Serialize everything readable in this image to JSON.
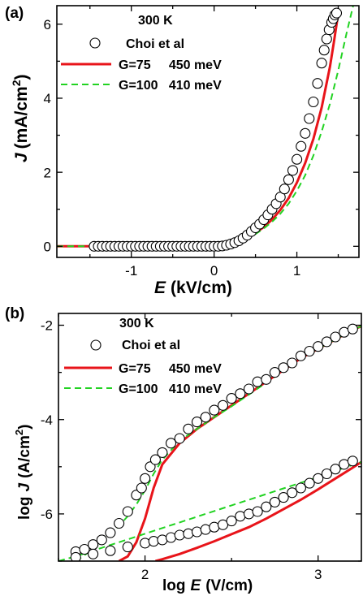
{
  "chart_data": [
    {
      "panel": "(a)",
      "type": "scatter",
      "xlabel_var": "E",
      "xlabel_unit": "(kV/cm)",
      "ylabel_var": "J",
      "ylabel_unit": "(mA/cm",
      "ylabel_sup": "2",
      "ylabel_close": ")",
      "xlim": [
        -1.9,
        1.75
      ],
      "ylim": [
        -0.3,
        6.5
      ],
      "xticks": [
        -1,
        0,
        1
      ],
      "xtick_labels": [
        "-1",
        "0",
        "1"
      ],
      "yticks": [
        0,
        2,
        4,
        6
      ],
      "ytick_labels": [
        "0",
        "2",
        "4",
        "6"
      ],
      "legend": {
        "header": "300 K",
        "items": [
          {
            "text": "Choi et al",
            "style": "open-circle",
            "color": "#000000"
          },
          {
            "text": "G=75     450 meV",
            "style": "solid",
            "color": "#e8141a"
          },
          {
            "text": "G=100   410 meV",
            "style": "dashed",
            "color": "#22d322"
          }
        ]
      },
      "series": [
        {
          "name": "Choi et al",
          "style": "open-circle",
          "x": [
            -1.45,
            -1.4,
            -1.35,
            -1.3,
            -1.25,
            -1.2,
            -1.15,
            -1.1,
            -1.05,
            -1.0,
            -0.95,
            -0.9,
            -0.85,
            -0.8,
            -0.75,
            -0.7,
            -0.65,
            -0.6,
            -0.55,
            -0.5,
            -0.45,
            -0.4,
            -0.35,
            -0.3,
            -0.25,
            -0.2,
            -0.15,
            -0.1,
            -0.05,
            0.0,
            0.05,
            0.1,
            0.15,
            0.2,
            0.25,
            0.3,
            0.35,
            0.4,
            0.45,
            0.5,
            0.55,
            0.6,
            0.65,
            0.7,
            0.75,
            0.8,
            0.85,
            0.9,
            0.95,
            1.0,
            1.05,
            1.1,
            1.15,
            1.2,
            1.25,
            1.3,
            1.33,
            1.36,
            1.39,
            1.42,
            1.44,
            1.46,
            1.48
          ],
          "y": [
            0,
            0,
            0,
            0,
            0,
            0,
            0,
            0,
            0,
            0,
            0,
            0,
            0,
            0,
            0,
            0,
            0,
            0,
            0,
            0,
            0,
            0,
            0,
            0,
            0,
            0,
            0,
            0,
            0,
            0,
            0,
            0.01,
            0.03,
            0.06,
            0.1,
            0.15,
            0.22,
            0.3,
            0.4,
            0.5,
            0.6,
            0.72,
            0.85,
            1.0,
            1.15,
            1.33,
            1.55,
            1.8,
            2.05,
            2.35,
            2.7,
            3.05,
            3.45,
            3.9,
            4.4,
            4.95,
            5.3,
            5.6,
            5.85,
            6.05,
            6.15,
            6.25,
            6.3
          ]
        },
        {
          "name": "G=75     450 meV",
          "style": "solid",
          "x": [
            -1.9,
            -1.0,
            0.0,
            0.1,
            0.2,
            0.3,
            0.4,
            0.5,
            0.6,
            0.7,
            0.8,
            0.9,
            1.0,
            1.1,
            1.2,
            1.3,
            1.4,
            1.45,
            1.5
          ],
          "y": [
            0,
            0,
            0,
            0.01,
            0.05,
            0.12,
            0.22,
            0.36,
            0.52,
            0.72,
            0.98,
            1.3,
            1.72,
            2.25,
            2.9,
            3.75,
            4.85,
            5.55,
            6.3
          ]
        },
        {
          "name": "G=100   410 meV",
          "style": "dashed",
          "x": [
            -1.9,
            -1.0,
            0.0,
            0.1,
            0.2,
            0.3,
            0.4,
            0.5,
            0.6,
            0.7,
            0.8,
            0.9,
            1.0,
            1.1,
            1.2,
            1.3,
            1.4,
            1.5,
            1.6,
            1.68
          ],
          "y": [
            0,
            0,
            0,
            0.01,
            0.05,
            0.12,
            0.21,
            0.33,
            0.48,
            0.66,
            0.88,
            1.15,
            1.5,
            1.92,
            2.45,
            3.1,
            3.85,
            4.75,
            5.75,
            6.5
          ]
        }
      ]
    },
    {
      "panel": "(b)",
      "type": "scatter",
      "xlabel_var": "E",
      "xlabel_pre": "log",
      "xlabel_unit": "(V/cm)",
      "ylabel_pre": "log",
      "ylabel_var": "J",
      "ylabel_unit": "(A/cm",
      "ylabel_sup": "2",
      "ylabel_close": ")",
      "xlim": [
        1.5,
        3.25
      ],
      "ylim": [
        -7.0,
        -1.75
      ],
      "xticks": [
        2,
        3
      ],
      "xtick_labels": [
        "2",
        "3"
      ],
      "yticks": [
        -6,
        -4,
        -2
      ],
      "ytick_labels": [
        "-6",
        "-4",
        "-2"
      ],
      "legend": {
        "header": "300 K",
        "items": [
          {
            "text": "Choi et al",
            "style": "open-circle",
            "color": "#000000"
          },
          {
            "text": "G=75     450 meV",
            "style": "solid",
            "color": "#e8141a"
          },
          {
            "text": "G=100   410 meV",
            "style": "dashed",
            "color": "#22d322"
          }
        ]
      },
      "series": [
        {
          "name": "Choi et al (upper)",
          "style": "open-circle",
          "x": [
            1.6,
            1.65,
            1.7,
            1.75,
            1.8,
            1.85,
            1.9,
            1.95,
            1.98,
            2.0,
            2.03,
            2.06,
            2.1,
            2.15,
            2.2,
            2.25,
            2.3,
            2.35,
            2.4,
            2.45,
            2.5,
            2.55,
            2.6,
            2.65,
            2.7,
            2.75,
            2.8,
            2.85,
            2.9,
            2.95,
            3.0,
            3.05,
            3.1,
            3.15,
            3.2
          ],
          "y": [
            -6.8,
            -6.75,
            -6.65,
            -6.55,
            -6.4,
            -6.2,
            -5.95,
            -5.6,
            -5.45,
            -5.25,
            -5.0,
            -4.85,
            -4.7,
            -4.5,
            -4.4,
            -4.2,
            -4.05,
            -3.95,
            -3.8,
            -3.7,
            -3.55,
            -3.45,
            -3.35,
            -3.2,
            -3.15,
            -3.0,
            -2.9,
            -2.8,
            -2.65,
            -2.55,
            -2.45,
            -2.35,
            -2.25,
            -2.15,
            -2.08
          ]
        },
        {
          "name": "Choi et al (lower)",
          "style": "open-circle",
          "x": [
            1.6,
            1.7,
            1.8,
            1.9,
            2.0,
            2.05,
            2.1,
            2.15,
            2.2,
            2.25,
            2.3,
            2.35,
            2.4,
            2.45,
            2.5,
            2.55,
            2.6,
            2.65,
            2.7,
            2.75,
            2.8,
            2.85,
            2.9,
            2.95,
            3.0,
            3.05,
            3.1,
            3.15,
            3.2
          ],
          "y": [
            -6.92,
            -6.85,
            -6.78,
            -6.7,
            -6.62,
            -6.58,
            -6.55,
            -6.5,
            -6.45,
            -6.42,
            -6.38,
            -6.33,
            -6.28,
            -6.23,
            -6.15,
            -6.05,
            -6.0,
            -5.95,
            -5.85,
            -5.75,
            -5.65,
            -5.55,
            -5.45,
            -5.35,
            -5.25,
            -5.15,
            -5.05,
            -4.95,
            -4.88
          ]
        },
        {
          "name": "G=75 (upper)",
          "style": "solid",
          "x": [
            1.85,
            1.9,
            1.95,
            2.0,
            2.05,
            2.1,
            2.2,
            2.3,
            2.4,
            2.5,
            2.6,
            2.7,
            2.8,
            2.9,
            3.0,
            3.1,
            3.2,
            3.25
          ],
          "y": [
            -7.0,
            -6.9,
            -6.6,
            -6.1,
            -5.45,
            -4.95,
            -4.5,
            -4.2,
            -3.95,
            -3.7,
            -3.45,
            -3.2,
            -2.95,
            -2.7,
            -2.5,
            -2.3,
            -2.1,
            -2.02
          ]
        },
        {
          "name": "G=75 (lower)",
          "style": "solid",
          "x": [
            2.06,
            2.1,
            2.2,
            2.3,
            2.4,
            2.5,
            2.6,
            2.7,
            2.8,
            2.9,
            3.0,
            3.1,
            3.2,
            3.25
          ],
          "y": [
            -7.0,
            -6.96,
            -6.85,
            -6.72,
            -6.58,
            -6.43,
            -6.28,
            -6.1,
            -5.9,
            -5.7,
            -5.48,
            -5.25,
            -5.02,
            -4.9
          ]
        },
        {
          "name": "G=100 (upper)",
          "style": "dashed",
          "x": [
            1.6,
            1.7,
            1.8,
            1.9,
            1.95,
            2.0,
            2.05,
            2.1,
            2.2,
            2.3,
            2.4,
            2.5,
            2.6,
            2.7,
            2.8,
            2.9,
            3.0,
            3.1,
            3.2,
            3.25
          ],
          "y": [
            -7.0,
            -6.75,
            -6.45,
            -6.05,
            -5.8,
            -5.5,
            -5.15,
            -4.85,
            -4.45,
            -4.2,
            -3.95,
            -3.72,
            -3.47,
            -3.22,
            -2.97,
            -2.72,
            -2.5,
            -2.3,
            -2.1,
            -2.02
          ]
        },
        {
          "name": "G=100 (lower)",
          "style": "dashed",
          "x": [
            1.5,
            1.6,
            1.7,
            1.8,
            1.9,
            2.0,
            2.1,
            2.2,
            2.3,
            2.4,
            2.5,
            2.6,
            2.7,
            2.8,
            2.9,
            3.0,
            3.1,
            3.2,
            3.25
          ],
          "y": [
            -7.0,
            -6.9,
            -6.78,
            -6.66,
            -6.54,
            -6.42,
            -6.3,
            -6.18,
            -6.06,
            -5.94,
            -5.82,
            -5.7,
            -5.58,
            -5.46,
            -5.34,
            -5.22,
            -5.09,
            -4.96,
            -4.9
          ]
        }
      ]
    }
  ]
}
